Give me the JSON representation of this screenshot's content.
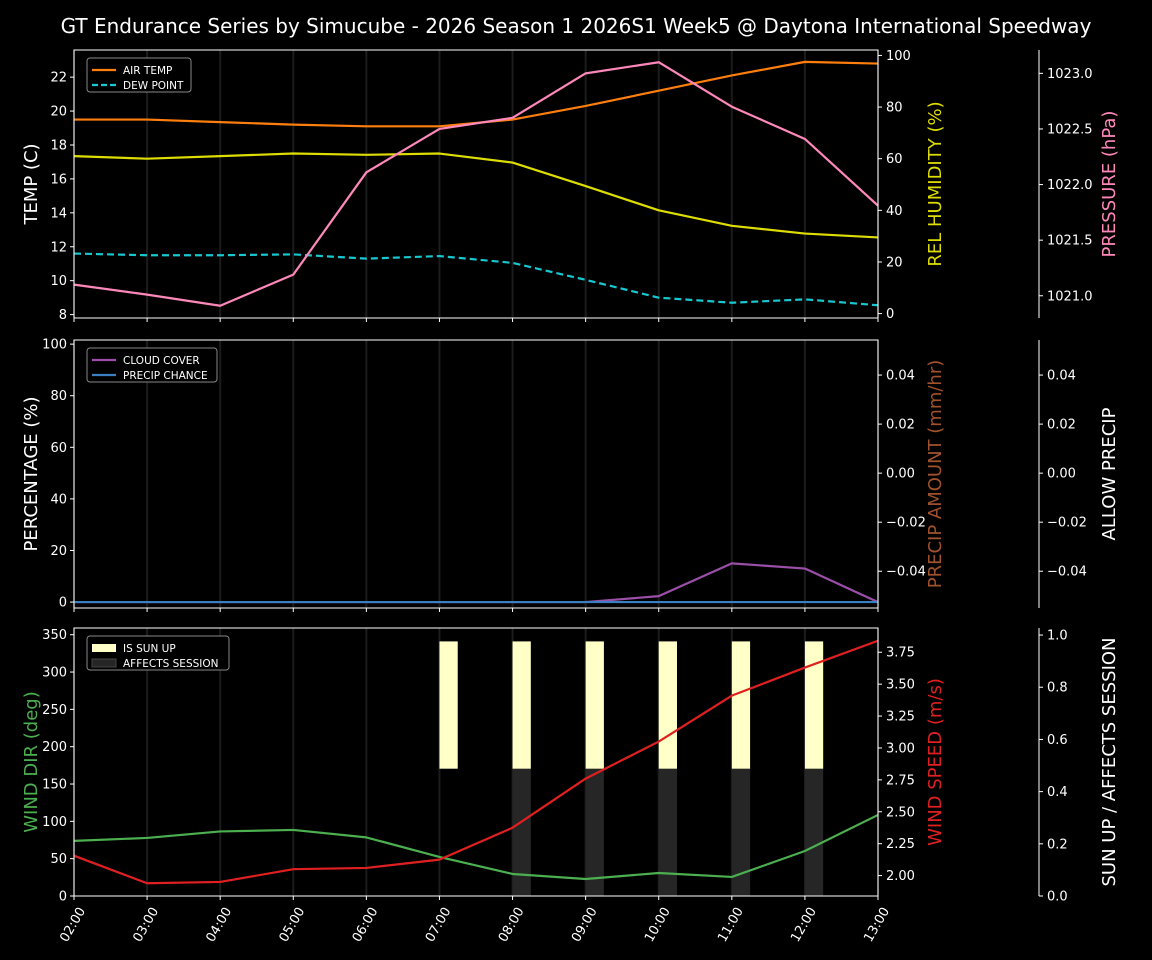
{
  "title": "GT Endurance Series by Simucube - 2026 Season 1 2026S1 Week5 @ Daytona International Speedway",
  "chart_data": [
    {
      "type": "line",
      "x": [
        "02:00",
        "03:00",
        "04:00",
        "05:00",
        "06:00",
        "07:00",
        "08:00",
        "09:00",
        "10:00",
        "11:00",
        "12:00",
        "13:00"
      ],
      "axes": {
        "left": {
          "label": "TEMP (C)",
          "color": "#ffffff",
          "range": [
            7.8,
            23.6
          ],
          "ticks": [
            "8",
            "10",
            "12",
            "14",
            "16",
            "18",
            "20",
            "22"
          ]
        },
        "right1": {
          "label": "REL HUMIDITY (%)",
          "color": "#dddd00",
          "range": [
            -1.7,
            102.1
          ],
          "ticks": [
            "0",
            "20",
            "40",
            "60",
            "80",
            "100"
          ]
        },
        "right2": {
          "label": "PRESSURE (hPa)",
          "color": "#ff88bb",
          "range": [
            1020.8,
            1023.21
          ],
          "ticks": [
            "1021.0",
            "1021.5",
            "1022.0",
            "1022.5",
            "1023.0"
          ]
        }
      },
      "legend": "upper-left",
      "series": [
        {
          "name": "AIR TEMP",
          "axis": "left",
          "color": "#ff7f0e",
          "dash": false,
          "legend": true,
          "values": [
            19.5,
            19.5,
            19.35,
            19.2,
            19.1,
            19.1,
            19.5,
            20.3,
            21.2,
            22.1,
            22.9,
            22.8
          ]
        },
        {
          "name": "DEW POINT",
          "axis": "left",
          "color": "#17c8d0",
          "dash": true,
          "legend": true,
          "values": [
            11.6,
            11.5,
            11.5,
            11.55,
            11.3,
            11.45,
            11.05,
            10.05,
            9.0,
            8.7,
            8.9,
            8.55
          ]
        },
        {
          "axis": "right1",
          "color": "#dddd00",
          "dash": false,
          "legend": false,
          "values": [
            61,
            60,
            61,
            62,
            61.5,
            62,
            58.5,
            49.4,
            40,
            34,
            31,
            29.5
          ]
        },
        {
          "axis": "right2",
          "color": "#ff88bb",
          "dash": false,
          "legend": false,
          "values": [
            1021.1,
            1021.01,
            1020.91,
            1021.19,
            1022.11,
            1022.5,
            1022.6,
            1023.0,
            1023.1,
            1022.7,
            1022.41,
            1021.81
          ]
        }
      ]
    },
    {
      "type": "line",
      "x": [
        "02:00",
        "03:00",
        "04:00",
        "05:00",
        "06:00",
        "07:00",
        "08:00",
        "09:00",
        "10:00",
        "11:00",
        "12:00",
        "13:00"
      ],
      "axes": {
        "left": {
          "label": "PERCENTAGE (%)",
          "color": "#ffffff",
          "range": [
            -2.3,
            101.6
          ],
          "ticks": [
            "0",
            "20",
            "40",
            "60",
            "80",
            "100"
          ]
        },
        "right1": {
          "label": "PRECIP AMOUNT (mm/hr)",
          "color": "#a0522d",
          "range": [
            -0.055,
            0.0543
          ],
          "ticks": [
            "−0.04",
            "−0.02",
            "0.00",
            "0.02",
            "0.04"
          ],
          "tick_values": [
            -0.04,
            -0.02,
            0,
            0.02,
            0.04
          ]
        },
        "right2": {
          "label": "ALLOW PRECIP",
          "color": "#ffffff",
          "range": [
            -0.055,
            0.0543
          ],
          "ticks": [
            "−0.04",
            "−0.02",
            "0.00",
            "0.02",
            "0.04"
          ],
          "tick_values": [
            -0.04,
            -0.02,
            0,
            0.02,
            0.04
          ]
        }
      },
      "legend": "upper-left",
      "series": [
        {
          "name": "CLOUD COVER",
          "axis": "left",
          "color": "#9b4fa8",
          "dash": false,
          "legend": true,
          "values": [
            0,
            0,
            0,
            0,
            0,
            0,
            0,
            0,
            2.3,
            15,
            13,
            0
          ]
        },
        {
          "name": "PRECIP CHANCE",
          "axis": "left",
          "color": "#3a7fc0",
          "dash": false,
          "legend": true,
          "values": [
            0,
            0,
            0,
            0,
            0,
            0,
            0,
            0,
            0,
            0,
            0,
            0
          ]
        }
      ]
    },
    {
      "type": "line",
      "x": [
        "02:00",
        "03:00",
        "04:00",
        "05:00",
        "06:00",
        "07:00",
        "08:00",
        "09:00",
        "10:00",
        "11:00",
        "12:00",
        "13:00"
      ],
      "axes": {
        "left": {
          "label": "WIND DIR (deg)",
          "color": "#4caf50",
          "range": [
            0,
            359
          ],
          "ticks": [
            "0",
            "50",
            "100",
            "150",
            "200",
            "250",
            "300",
            "350"
          ]
        },
        "right1": {
          "label": "WIND SPEED (m/s)",
          "color": "#e02020",
          "range": [
            1.84,
            3.94
          ],
          "ticks": [
            "2.00",
            "2.25",
            "2.50",
            "2.75",
            "3.00",
            "3.25",
            "3.50",
            "3.75"
          ]
        },
        "right2": {
          "label": "SUN UP / AFFECTS SESSION",
          "color": "#ffffff",
          "range": [
            0,
            1.027
          ],
          "ticks": [
            "0.0",
            "0.2",
            "0.4",
            "0.6",
            "0.8",
            "1.0"
          ]
        }
      },
      "legend": "upper-left",
      "bars": [
        {
          "name": "IS SUN UP",
          "color": "#ffffc8",
          "values": [
            0,
            0,
            0,
            0,
            0,
            1,
            1,
            1,
            1,
            1,
            1,
            0
          ]
        },
        {
          "name": "AFFECTS SESSION",
          "color": "#262626",
          "values": [
            0,
            0,
            0,
            0,
            0,
            0,
            1,
            1,
            1,
            1,
            1,
            0
          ]
        }
      ],
      "series": [
        {
          "axis": "left",
          "color": "#4caf50",
          "dash": false,
          "legend": false,
          "values": [
            73.8,
            77.8,
            86.5,
            88.5,
            78.5,
            52.3,
            29.5,
            22.8,
            30.8,
            25.5,
            60.3,
            108.6
          ]
        },
        {
          "axis": "right1",
          "color": "#e02020",
          "dash": false,
          "legend": false,
          "values": [
            2.156,
            1.94,
            1.95,
            2.05,
            2.06,
            2.125,
            2.375,
            2.76,
            3.05,
            3.41,
            3.63,
            3.84
          ]
        }
      ]
    }
  ]
}
